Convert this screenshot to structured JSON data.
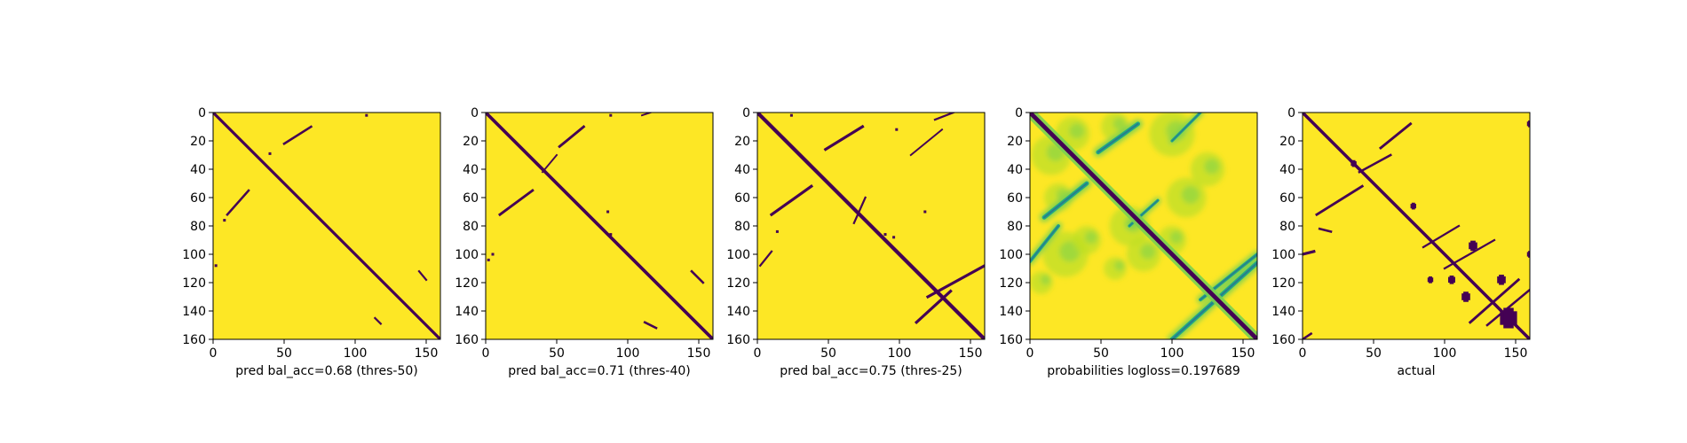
{
  "chart_data": [
    {
      "type": "heatmap",
      "xlabel": "pred bal_acc=0.68 (thres-50)",
      "x_ticks": [
        "0",
        "50",
        "100",
        "150"
      ],
      "y_ticks": [
        "0",
        "20",
        "40",
        "60",
        "80",
        "100",
        "120",
        "140",
        "160"
      ],
      "xlim": [
        0,
        160
      ],
      "ylim": [
        160,
        0
      ],
      "matrix_size": 160,
      "mode": "binary",
      "colors": {
        "high": "#fde725",
        "low": "#440154"
      },
      "diagonal": {
        "present": true,
        "width": 2
      },
      "features": [
        {
          "kind": "line",
          "from": [
            50,
            22
          ],
          "to": [
            69,
            10
          ],
          "w": 1.6
        },
        {
          "kind": "line",
          "from": [
            10,
            72
          ],
          "to": [
            25,
            55
          ],
          "w": 1.6
        },
        {
          "kind": "line",
          "from": [
            145,
            112
          ],
          "to": [
            150,
            118
          ],
          "w": 1.4
        },
        {
          "kind": "line",
          "from": [
            114,
            145
          ],
          "to": [
            118,
            149
          ],
          "w": 1.4
        },
        {
          "kind": "dot",
          "at": [
            40,
            29
          ]
        },
        {
          "kind": "dot",
          "at": [
            108,
            2
          ]
        },
        {
          "kind": "dot",
          "at": [
            2,
            108
          ]
        },
        {
          "kind": "dot",
          "at": [
            8,
            76
          ]
        }
      ]
    },
    {
      "type": "heatmap",
      "xlabel": "pred bal_acc=0.71 (thres-40)",
      "x_ticks": [
        "0",
        "50",
        "100",
        "150"
      ],
      "y_ticks": [
        "0",
        "20",
        "40",
        "60",
        "80",
        "100",
        "120",
        "140",
        "160"
      ],
      "xlim": [
        0,
        160
      ],
      "ylim": [
        160,
        0
      ],
      "matrix_size": 160,
      "mode": "binary",
      "colors": {
        "high": "#fde725",
        "low": "#440154"
      },
      "diagonal": {
        "present": true,
        "width": 2.3
      },
      "features": [
        {
          "kind": "line",
          "from": [
            52,
            24
          ],
          "to": [
            69,
            10
          ],
          "w": 1.8
        },
        {
          "kind": "line",
          "from": [
            10,
            72
          ],
          "to": [
            33,
            55
          ],
          "w": 1.8
        },
        {
          "kind": "line",
          "from": [
            40,
            42
          ],
          "to": [
            50,
            30
          ],
          "w": 1.2
        },
        {
          "kind": "line",
          "from": [
            145,
            112
          ],
          "to": [
            153,
            120
          ],
          "w": 1.6
        },
        {
          "kind": "line",
          "from": [
            112,
            148
          ],
          "to": [
            120,
            152
          ],
          "w": 1.6
        },
        {
          "kind": "line",
          "from": [
            110,
            2
          ],
          "to": [
            116,
            0
          ],
          "w": 1.2
        },
        {
          "kind": "dot",
          "at": [
            88,
            86
          ]
        },
        {
          "kind": "dot",
          "at": [
            88,
            2
          ]
        },
        {
          "kind": "dot",
          "at": [
            2,
            104
          ]
        },
        {
          "kind": "dot",
          "at": [
            5,
            100
          ]
        },
        {
          "kind": "dot",
          "at": [
            86,
            70
          ]
        }
      ]
    },
    {
      "type": "heatmap",
      "xlabel": "pred bal_acc=0.75 (thres-25)",
      "x_ticks": [
        "0",
        "50",
        "100",
        "150"
      ],
      "y_ticks": [
        "0",
        "20",
        "40",
        "60",
        "80",
        "100",
        "120",
        "140",
        "160"
      ],
      "xlim": [
        0,
        160
      ],
      "ylim": [
        160,
        0
      ],
      "matrix_size": 160,
      "mode": "binary",
      "colors": {
        "high": "#fde725",
        "low": "#440154"
      },
      "diagonal": {
        "present": true,
        "width": 2.6
      },
      "features": [
        {
          "kind": "line",
          "from": [
            48,
            26
          ],
          "to": [
            74,
            10
          ],
          "w": 2
        },
        {
          "kind": "line",
          "from": [
            10,
            72
          ],
          "to": [
            38,
            52
          ],
          "w": 2
        },
        {
          "kind": "line",
          "from": [
            130,
            12
          ],
          "to": [
            108,
            30
          ],
          "w": 1.2
        },
        {
          "kind": "line",
          "from": [
            125,
            5
          ],
          "to": [
            138,
            0
          ],
          "w": 1.4
        },
        {
          "kind": "line",
          "from": [
            120,
            130
          ],
          "to": [
            160,
            108
          ],
          "w": 2
        },
        {
          "kind": "line",
          "from": [
            112,
            148
          ],
          "to": [
            136,
            126
          ],
          "w": 2
        },
        {
          "kind": "line",
          "from": [
            68,
            78
          ],
          "to": [
            76,
            60
          ],
          "w": 1.4
        },
        {
          "kind": "line",
          "from": [
            2,
            108
          ],
          "to": [
            10,
            98
          ],
          "w": 1.4
        },
        {
          "kind": "dot",
          "at": [
            90,
            86
          ]
        },
        {
          "kind": "dot",
          "at": [
            96,
            88
          ]
        },
        {
          "kind": "dot",
          "at": [
            118,
            70
          ]
        },
        {
          "kind": "dot",
          "at": [
            14,
            84
          ]
        },
        {
          "kind": "dot",
          "at": [
            24,
            2
          ]
        },
        {
          "kind": "dot",
          "at": [
            98,
            12
          ]
        }
      ]
    },
    {
      "type": "heatmap",
      "xlabel": "probabilities logloss=0.197689",
      "x_ticks": [
        "0",
        "50",
        "100",
        "150"
      ],
      "y_ticks": [
        "0",
        "20",
        "40",
        "60",
        "80",
        "100",
        "120",
        "140",
        "160"
      ],
      "xlim": [
        0,
        160
      ],
      "ylim": [
        160,
        0
      ],
      "matrix_size": 160,
      "mode": "probability",
      "colors": {
        "high": "#fde725",
        "low": "#440154",
        "mid_low": "#2a788e",
        "mid": "#22a884",
        "mid_high": "#7ad151",
        "light": "#bddf26"
      },
      "diagonal": {
        "present": true,
        "width": 3
      },
      "features": [
        {
          "kind": "line",
          "from": [
            48,
            28
          ],
          "to": [
            76,
            8
          ],
          "w": 3
        },
        {
          "kind": "line",
          "from": [
            10,
            74
          ],
          "to": [
            40,
            50
          ],
          "w": 3
        },
        {
          "kind": "line",
          "from": [
            100,
            160
          ],
          "to": [
            160,
            106
          ],
          "w": 3
        },
        {
          "kind": "line",
          "from": [
            120,
            132
          ],
          "to": [
            160,
            100
          ],
          "w": 2.4
        },
        {
          "kind": "line",
          "from": [
            0,
            105
          ],
          "to": [
            20,
            80
          ],
          "w": 2.4
        },
        {
          "kind": "line",
          "from": [
            70,
            80
          ],
          "to": [
            90,
            62
          ],
          "w": 2
        },
        {
          "kind": "line",
          "from": [
            100,
            20
          ],
          "to": [
            120,
            0
          ],
          "w": 2
        }
      ],
      "noise": [
        {
          "at": [
            15,
            30
          ],
          "r": 14
        },
        {
          "at": [
            30,
            15
          ],
          "r": 12
        },
        {
          "at": [
            60,
            10
          ],
          "r": 10
        },
        {
          "at": [
            100,
            15
          ],
          "r": 16
        },
        {
          "at": [
            125,
            40
          ],
          "r": 12
        },
        {
          "at": [
            110,
            60
          ],
          "r": 14
        },
        {
          "at": [
            70,
            80
          ],
          "r": 14
        },
        {
          "at": [
            80,
            100
          ],
          "r": 12
        },
        {
          "at": [
            25,
            100
          ],
          "r": 16
        },
        {
          "at": [
            40,
            90
          ],
          "r": 10
        },
        {
          "at": [
            60,
            110
          ],
          "r": 8
        },
        {
          "at": [
            100,
            90
          ],
          "r": 10
        },
        {
          "at": [
            20,
            60
          ],
          "r": 10
        },
        {
          "at": [
            8,
            120
          ],
          "r": 8
        }
      ]
    },
    {
      "type": "heatmap",
      "xlabel": "actual",
      "x_ticks": [
        "0",
        "50",
        "100",
        "150"
      ],
      "y_ticks": [
        "0",
        "20",
        "40",
        "60",
        "80",
        "100",
        "120",
        "140",
        "160"
      ],
      "xlim": [
        0,
        160
      ],
      "ylim": [
        160,
        0
      ],
      "matrix_size": 160,
      "mode": "binary",
      "colors": {
        "high": "#fde725",
        "low": "#440154"
      },
      "diagonal": {
        "present": true,
        "width": 2.2
      },
      "features": [
        {
          "kind": "line",
          "from": [
            55,
            25
          ],
          "to": [
            76,
            8
          ],
          "w": 1.8
        },
        {
          "kind": "line",
          "from": [
            10,
            72
          ],
          "to": [
            42,
            52
          ],
          "w": 1.8
        },
        {
          "kind": "line",
          "from": [
            40,
            42
          ],
          "to": [
            62,
            30
          ],
          "w": 1.6
        },
        {
          "kind": "line",
          "from": [
            118,
            148
          ],
          "to": [
            152,
            118
          ],
          "w": 1.8
        },
        {
          "kind": "line",
          "from": [
            130,
            150
          ],
          "to": [
            160,
            125
          ],
          "w": 1.6
        },
        {
          "kind": "line",
          "from": [
            100,
            110
          ],
          "to": [
            135,
            90
          ],
          "w": 1.4
        },
        {
          "kind": "line",
          "from": [
            85,
            95
          ],
          "to": [
            110,
            80
          ],
          "w": 1.4
        },
        {
          "kind": "line",
          "from": [
            0,
            100
          ],
          "to": [
            8,
            98
          ],
          "w": 2
        },
        {
          "kind": "line",
          "from": [
            12,
            82
          ],
          "to": [
            20,
            84
          ],
          "w": 1.6
        },
        {
          "kind": "line",
          "from": [
            0,
            160
          ],
          "to": [
            6,
            156
          ],
          "w": 1.6
        },
        {
          "kind": "blob",
          "at": [
            145,
            145
          ],
          "r": 6
        },
        {
          "kind": "blob",
          "at": [
            115,
            130
          ],
          "r": 3
        },
        {
          "kind": "blob",
          "at": [
            120,
            94
          ],
          "r": 3
        },
        {
          "kind": "blob",
          "at": [
            140,
            118
          ],
          "r": 3
        },
        {
          "kind": "blob",
          "at": [
            105,
            118
          ],
          "r": 2.5
        },
        {
          "kind": "blob",
          "at": [
            78,
            66
          ],
          "r": 2
        },
        {
          "kind": "blob",
          "at": [
            160,
            8
          ],
          "r": 2
        },
        {
          "kind": "blob",
          "at": [
            160,
            100
          ],
          "r": 2
        },
        {
          "kind": "blob",
          "at": [
            36,
            36
          ],
          "r": 2
        },
        {
          "kind": "blob",
          "at": [
            90,
            118
          ],
          "r": 2
        }
      ]
    }
  ]
}
